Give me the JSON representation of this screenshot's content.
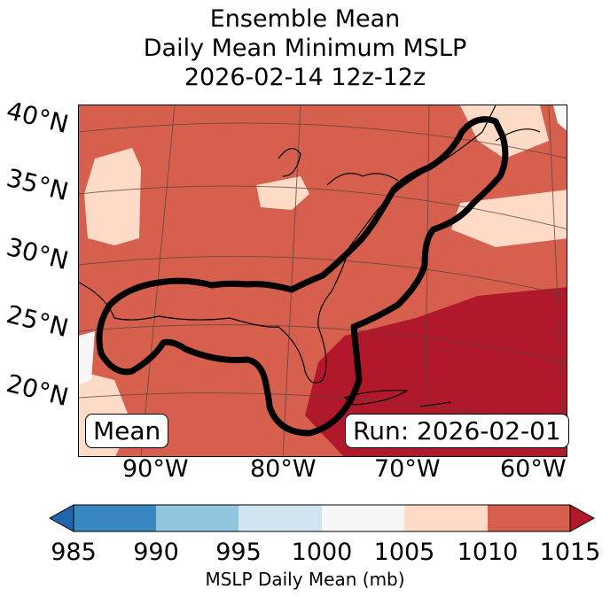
{
  "title": {
    "line1": "Ensemble Mean",
    "line2": "Daily Mean Minimum MSLP",
    "line3": "2026-02-14 12z-12z"
  },
  "map": {
    "lat_labels": [
      "40°N",
      "35°N",
      "30°N",
      "25°N",
      "20°N"
    ],
    "lon_labels": [
      "90°W",
      "80°W",
      "70°W",
      "60°W"
    ],
    "mean_box": "Mean",
    "run_box": "Run: 2026-02-01",
    "field_levels_mb": {
      "background": 1010,
      "high_pressure_patches": 1005,
      "atlantic_low_region": 1015
    }
  },
  "colorbar": {
    "label": "MSLP Daily Mean (mb)",
    "ticks": [
      "985",
      "990",
      "995",
      "1000",
      "1005",
      "1010",
      "1015"
    ],
    "colors": [
      "#3a88c1",
      "#92c5de",
      "#d1e5f0",
      "#f7f7f7",
      "#fddbc7",
      "#d6604d",
      "#b2182b"
    ],
    "under_color": "#2166ac",
    "over_color": "#b2182b"
  }
}
